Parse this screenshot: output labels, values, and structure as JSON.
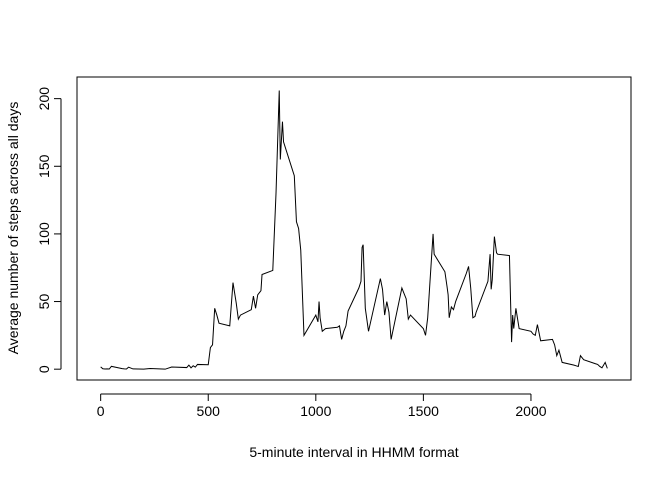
{
  "chart_data": {
    "type": "line",
    "title": "",
    "xlabel": "5-minute interval in HHMM format",
    "ylabel": "Average number of steps across all days",
    "xlim": [
      -110,
      2465
    ],
    "ylim": [
      -8,
      216
    ],
    "xticks": [
      0,
      500,
      1000,
      1500,
      2000
    ],
    "yticks": [
      0,
      50,
      100,
      150,
      200
    ],
    "xtick_labels": [
      "0",
      "500",
      "1000",
      "1500",
      "2000"
    ],
    "ytick_labels": [
      "0",
      "50",
      "100",
      "150",
      "200"
    ],
    "grid": false,
    "line_color": "#000000",
    "series": [
      {
        "x": [
          0,
          10,
          20,
          30,
          40,
          50,
          100,
          110,
          120,
          130,
          150,
          200,
          230,
          300,
          330,
          400,
          410,
          420,
          430,
          440,
          450,
          500,
          510,
          520,
          530,
          540,
          550,
          600,
          615,
          630,
          640,
          650,
          700,
          710,
          720,
          730,
          745,
          750,
          800,
          815,
          830,
          835,
          845,
          850,
          900,
          910,
          920,
          930,
          945,
          1000,
          1010,
          1015,
          1020,
          1030,
          1045,
          1100,
          1110,
          1120,
          1130,
          1140,
          1150,
          1200,
          1210,
          1215,
          1220,
          1230,
          1245,
          1300,
          1310,
          1320,
          1330,
          1340,
          1350,
          1400,
          1410,
          1420,
          1430,
          1440,
          1500,
          1510,
          1520,
          1530,
          1545,
          1550,
          1600,
          1610,
          1615,
          1620,
          1630,
          1640,
          1650,
          1700,
          1710,
          1720,
          1730,
          1740,
          1745,
          1800,
          1810,
          1815,
          1820,
          1830,
          1840,
          1845,
          1900,
          1910,
          1915,
          1920,
          1930,
          1945,
          2000,
          2010,
          2020,
          2030,
          2045,
          2100,
          2110,
          2120,
          2130,
          2145,
          2200,
          2210,
          2220,
          2230,
          2245,
          2300,
          2310,
          2320,
          2330,
          2345,
          2355
        ],
        "y": [
          1.7,
          0.3,
          0.1,
          0.2,
          0.1,
          2.1,
          0.4,
          0.2,
          0.1,
          1.5,
          0.2,
          0.0,
          0.5,
          0.0,
          1.6,
          1.2,
          3.0,
          1.0,
          2.5,
          1.5,
          3.5,
          3.3,
          16.0,
          18.0,
          45.0,
          40.0,
          34.0,
          32.0,
          64.0,
          49.0,
          37.0,
          40.0,
          44.0,
          54.0,
          45.0,
          55.0,
          58.0,
          70.0,
          73.0,
          130.0,
          206.0,
          155.0,
          183.0,
          168.0,
          143.0,
          109.0,
          104.0,
          88.0,
          25.0,
          40.0,
          35.0,
          50.0,
          38.0,
          28.0,
          30.0,
          31.0,
          32.0,
          22.0,
          28.0,
          32.0,
          43.0,
          60.0,
          65.0,
          90.0,
          92.0,
          45.0,
          28.0,
          67.0,
          59.0,
          40.0,
          50.0,
          42.0,
          22.0,
          60.0,
          56.0,
          52.0,
          37.0,
          40.0,
          30.0,
          25.0,
          38.0,
          63.0,
          100.0,
          85.0,
          72.0,
          61.0,
          55.0,
          38.0,
          46.0,
          44.0,
          50.0,
          71.0,
          76.0,
          60.0,
          38.0,
          39.0,
          42.0,
          65.0,
          85.0,
          59.0,
          66.0,
          98.0,
          86.0,
          85.0,
          84.0,
          20.0,
          40.0,
          30.0,
          45.0,
          30.0,
          28.0,
          26.0,
          25.0,
          33.0,
          21.0,
          22.0,
          18.0,
          10.0,
          14.0,
          5.0,
          3.0,
          2.5,
          2.0,
          10.0,
          7.0,
          4.0,
          3.5,
          2.0,
          1.0,
          5.0,
          0.6
        ]
      }
    ]
  }
}
